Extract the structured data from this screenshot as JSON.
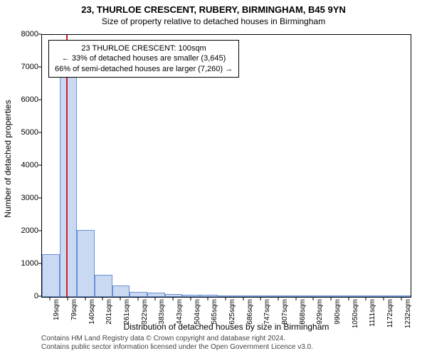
{
  "title": "23, THURLOE CRESCENT, RUBERY, BIRMINGHAM, B45 9YN",
  "subtitle": "Size of property relative to detached houses in Birmingham",
  "chart": {
    "type": "histogram",
    "ylabel": "Number of detached properties",
    "xlabel": "Distribution of detached houses by size in Birmingham",
    "ylim_max": 8000,
    "ytick_step": 1000,
    "yticks": [
      0,
      1000,
      2000,
      3000,
      4000,
      5000,
      6000,
      7000,
      8000
    ],
    "xticks": [
      "19sqm",
      "79sqm",
      "140sqm",
      "201sqm",
      "261sqm",
      "322sqm",
      "383sqm",
      "443sqm",
      "504sqm",
      "565sqm",
      "625sqm",
      "686sqm",
      "747sqm",
      "807sqm",
      "868sqm",
      "929sqm",
      "990sqm",
      "1050sqm",
      "1111sqm",
      "1172sqm",
      "1232sqm"
    ],
    "bars": [
      1300,
      6800,
      2050,
      680,
      350,
      160,
      120,
      90,
      70,
      60,
      50,
      40,
      30,
      25,
      20,
      18,
      15,
      12,
      10,
      8,
      6
    ],
    "bar_fill": "#c9d9f2",
    "bar_stroke": "#6a8fd4",
    "marker_color": "#d02020",
    "marker_position_sqm": 100,
    "x_min_sqm": 19,
    "x_max_sqm": 1262
  },
  "legend": {
    "line1": "23 THURLOE CRESCENT: 100sqm",
    "line2": "← 33% of detached houses are smaller (3,645)",
    "line3": "66% of semi-detached houses are larger (7,260) →"
  },
  "attribution": {
    "line1": "Contains HM Land Registry data © Crown copyright and database right 2024.",
    "line2": "Contains public sector information licensed under the Open Government Licence v3.0."
  },
  "style": {
    "title_fontsize": 13,
    "subtitle_fontsize": 12,
    "axis_label_fontsize": 12,
    "tick_fontsize": 11,
    "xtick_fontsize": 10,
    "legend_fontsize": 11,
    "attribution_fontsize": 10,
    "background_color": "#ffffff",
    "text_color": "#000000",
    "border_color": "#000000"
  }
}
